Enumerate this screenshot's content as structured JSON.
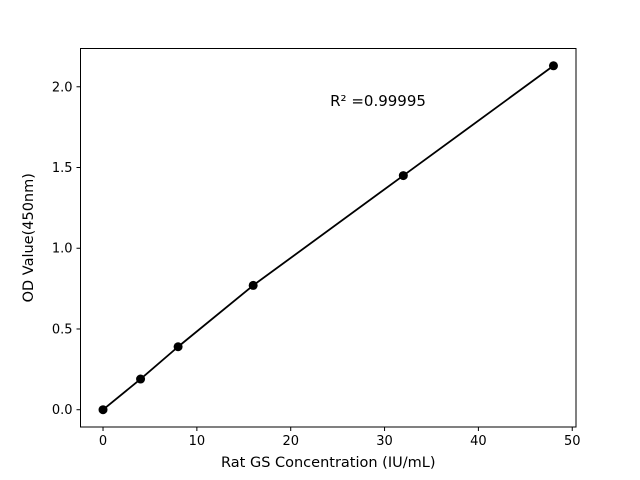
{
  "figure": {
    "background": "#ffffff"
  },
  "chart_data": {
    "type": "line",
    "x": [
      0,
      4,
      8,
      16,
      32,
      48
    ],
    "y": [
      0.0,
      0.19,
      0.39,
      0.77,
      1.45,
      2.13
    ],
    "title": "",
    "xlabel": "Rat GS Concentration (IU/mL)",
    "ylabel": "OD Value(450nm)",
    "xlim": [
      -2.4,
      50.4
    ],
    "ylim": [
      -0.107,
      2.237
    ],
    "xticks": [
      0,
      10,
      20,
      30,
      40,
      50
    ],
    "xtick_labels": [
      "0",
      "10",
      "20",
      "30",
      "40",
      "50"
    ],
    "yticks": [
      0.0,
      0.5,
      1.0,
      1.5,
      2.0
    ],
    "ytick_labels": [
      "0.0",
      "0.5",
      "1.0",
      "1.5",
      "2.0"
    ],
    "grid": false,
    "legend_position": "none",
    "line_color": "#000000",
    "marker": "circle",
    "marker_color": "#000000",
    "annotation": {
      "text": "R² =0.99995",
      "x": 24.2,
      "y": 1.88
    }
  }
}
